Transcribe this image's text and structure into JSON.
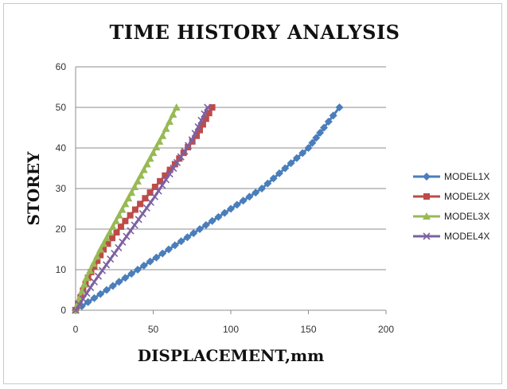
{
  "chart_data": {
    "type": "line",
    "title": "TIME HISTORY ANALYSIS",
    "xlabel": "DISPLACEMENT,mm",
    "ylabel": "STOREY",
    "xlim": [
      0,
      200
    ],
    "ylim": [
      0,
      60
    ],
    "xticks": [
      "0",
      "50",
      "100",
      "150",
      "200"
    ],
    "yticks": [
      "0",
      "10",
      "20",
      "30",
      "40",
      "50",
      "60"
    ],
    "grid": "horizontal",
    "legend_position": "right",
    "series": [
      {
        "name": "MODEL1X",
        "color": "#4a7ebb",
        "marker": "diamond",
        "x": [
          0,
          20,
          40,
          60,
          80,
          100,
          120,
          135,
          150,
          160,
          166,
          170
        ],
        "y": [
          0,
          5,
          10,
          15,
          20,
          25,
          30,
          35,
          40,
          45,
          48,
          50
        ]
      },
      {
        "name": "MODEL2X",
        "color": "#be4b48",
        "marker": "square",
        "x": [
          0,
          8,
          18,
          32,
          48,
          64,
          78,
          88
        ],
        "y": [
          0,
          8,
          15,
          22,
          29,
          36,
          43,
          50
        ]
      },
      {
        "name": "MODEL3X",
        "color": "#98b954",
        "marker": "triangle",
        "x": [
          0,
          7,
          16,
          26,
          36,
          46,
          56,
          65
        ],
        "y": [
          0,
          8,
          15,
          22,
          29,
          36,
          43,
          50
        ]
      },
      {
        "name": "MODEL4X",
        "color": "#7d60a0",
        "marker": "x",
        "x": [
          0,
          12,
          25,
          38,
          51,
          63,
          75,
          85
        ],
        "y": [
          0,
          7,
          14,
          21,
          28,
          35,
          42,
          50
        ]
      }
    ]
  }
}
